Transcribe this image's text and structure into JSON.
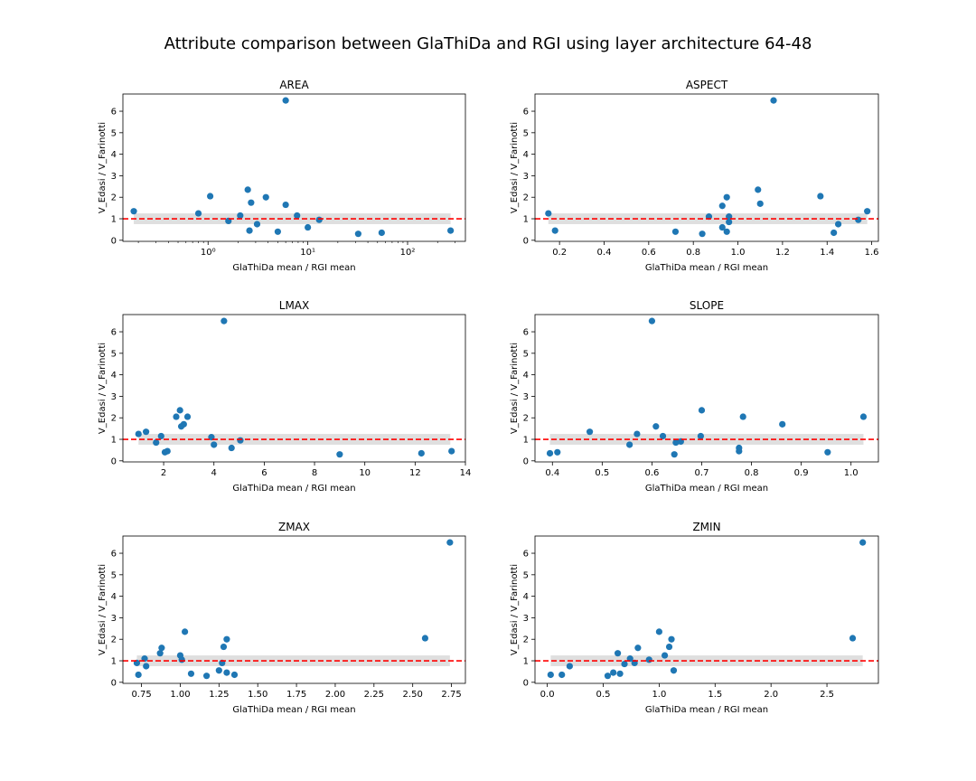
{
  "figure": {
    "title": "Attribute comparison between GlaThiDa and RGI using layer architecture 64-48"
  },
  "colors": {
    "points": "#1f77b4",
    "reference_line": "#ff0000",
    "band": "#d9d9d9"
  },
  "chart_data": [
    {
      "type": "scatter",
      "title": "AREA",
      "xlabel": "GlaThiDa mean / RGI mean",
      "ylabel": "V_Edasi / V_Farinotti",
      "xscale": "log",
      "xlim": [
        0.14,
        380
      ],
      "ylim": [
        -0.05,
        6.8
      ],
      "xticks": [
        1,
        10,
        100
      ],
      "xtick_labels": [
        "10⁰",
        "10¹",
        "10²"
      ],
      "yticks": [
        0,
        1,
        2,
        3,
        4,
        5,
        6
      ],
      "reference_y": 1.0,
      "band": {
        "x": [
          0.18,
          270
        ],
        "y": [
          0.75,
          1.25
        ]
      },
      "points": [
        {
          "x": 0.18,
          "y": 1.35
        },
        {
          "x": 0.8,
          "y": 1.25
        },
        {
          "x": 1.05,
          "y": 2.05
        },
        {
          "x": 1.6,
          "y": 0.9
        },
        {
          "x": 2.1,
          "y": 1.15
        },
        {
          "x": 2.5,
          "y": 2.35
        },
        {
          "x": 2.6,
          "y": 0.45
        },
        {
          "x": 2.7,
          "y": 1.75
        },
        {
          "x": 3.1,
          "y": 0.75
        },
        {
          "x": 3.8,
          "y": 2.0
        },
        {
          "x": 5.0,
          "y": 0.4
        },
        {
          "x": 6.0,
          "y": 6.5
        },
        {
          "x": 6.0,
          "y": 1.65
        },
        {
          "x": 7.8,
          "y": 1.15
        },
        {
          "x": 10.0,
          "y": 0.6
        },
        {
          "x": 13.0,
          "y": 0.95
        },
        {
          "x": 32.0,
          "y": 0.3
        },
        {
          "x": 55.0,
          "y": 0.35
        },
        {
          "x": 270.0,
          "y": 0.45
        }
      ]
    },
    {
      "type": "scatter",
      "title": "ASPECT",
      "xlabel": "GlaThiDa mean / RGI mean",
      "ylabel": "V_Edasi / V_Farinotti",
      "xscale": "linear",
      "xlim": [
        0.09,
        1.63
      ],
      "ylim": [
        -0.05,
        6.8
      ],
      "xticks": [
        0.2,
        0.4,
        0.6,
        0.8,
        1.0,
        1.2,
        1.4,
        1.6
      ],
      "xtick_labels": [
        "0.2",
        "0.4",
        "0.6",
        "0.8",
        "1.0",
        "1.2",
        "1.4",
        "1.6"
      ],
      "yticks": [
        0,
        1,
        2,
        3,
        4,
        5,
        6
      ],
      "reference_y": 1.0,
      "band": {
        "x": [
          0.15,
          1.58
        ],
        "y": [
          0.75,
          1.25
        ]
      },
      "points": [
        {
          "x": 0.15,
          "y": 1.25
        },
        {
          "x": 0.18,
          "y": 0.45
        },
        {
          "x": 0.72,
          "y": 0.4
        },
        {
          "x": 0.84,
          "y": 0.3
        },
        {
          "x": 0.87,
          "y": 1.1
        },
        {
          "x": 0.93,
          "y": 1.6
        },
        {
          "x": 0.93,
          "y": 0.6
        },
        {
          "x": 0.95,
          "y": 2.0
        },
        {
          "x": 0.96,
          "y": 1.1
        },
        {
          "x": 0.96,
          "y": 0.85
        },
        {
          "x": 0.95,
          "y": 0.4
        },
        {
          "x": 1.09,
          "y": 2.35
        },
        {
          "x": 1.1,
          "y": 1.7
        },
        {
          "x": 1.16,
          "y": 6.5
        },
        {
          "x": 1.37,
          "y": 2.05
        },
        {
          "x": 1.43,
          "y": 0.35
        },
        {
          "x": 1.45,
          "y": 0.75
        },
        {
          "x": 1.54,
          "y": 0.95
        },
        {
          "x": 1.58,
          "y": 1.35
        }
      ]
    },
    {
      "type": "scatter",
      "title": "LMAX",
      "xlabel": "GlaThiDa mean / RGI mean",
      "ylabel": "V_Edasi / V_Farinotti",
      "xscale": "linear",
      "xlim": [
        0.38,
        14.0
      ],
      "ylim": [
        -0.05,
        6.8
      ],
      "xticks": [
        2,
        4,
        6,
        8,
        10,
        12,
        14
      ],
      "xtick_labels": [
        "2",
        "4",
        "6",
        "8",
        "10",
        "12",
        "14"
      ],
      "yticks": [
        0,
        1,
        2,
        3,
        4,
        5,
        6
      ],
      "reference_y": 1.0,
      "band": {
        "x": [
          1.0,
          13.4
        ],
        "y": [
          0.75,
          1.25
        ]
      },
      "points": [
        {
          "x": 1.0,
          "y": 1.25
        },
        {
          "x": 1.3,
          "y": 1.35
        },
        {
          "x": 1.7,
          "y": 0.85
        },
        {
          "x": 1.9,
          "y": 1.15
        },
        {
          "x": 2.05,
          "y": 0.4
        },
        {
          "x": 2.15,
          "y": 0.45
        },
        {
          "x": 2.5,
          "y": 2.05
        },
        {
          "x": 2.65,
          "y": 2.35
        },
        {
          "x": 2.7,
          "y": 1.6
        },
        {
          "x": 2.8,
          "y": 1.7
        },
        {
          "x": 2.95,
          "y": 2.05
        },
        {
          "x": 3.9,
          "y": 1.1
        },
        {
          "x": 4.0,
          "y": 0.75
        },
        {
          "x": 4.4,
          "y": 6.5
        },
        {
          "x": 4.7,
          "y": 0.6
        },
        {
          "x": 5.05,
          "y": 0.95
        },
        {
          "x": 9.0,
          "y": 0.3
        },
        {
          "x": 12.25,
          "y": 0.35
        },
        {
          "x": 13.45,
          "y": 0.45
        }
      ]
    },
    {
      "type": "scatter",
      "title": "SLOPE",
      "xlabel": "GlaThiDa mean / RGI mean",
      "ylabel": "V_Edasi / V_Farinotti",
      "xscale": "linear",
      "xlim": [
        0.365,
        1.055
      ],
      "ylim": [
        -0.05,
        6.8
      ],
      "xticks": [
        0.4,
        0.5,
        0.6,
        0.7,
        0.8,
        0.9,
        1.0
      ],
      "xtick_labels": [
        "0.4",
        "0.5",
        "0.6",
        "0.7",
        "0.8",
        "0.9",
        "1.0"
      ],
      "yticks": [
        0,
        1,
        2,
        3,
        4,
        5,
        6
      ],
      "reference_y": 1.0,
      "band": {
        "x": [
          0.395,
          1.025
        ],
        "y": [
          0.75,
          1.25
        ]
      },
      "points": [
        {
          "x": 0.395,
          "y": 0.35
        },
        {
          "x": 0.41,
          "y": 0.4
        },
        {
          "x": 0.475,
          "y": 1.35
        },
        {
          "x": 0.555,
          "y": 0.75
        },
        {
          "x": 0.57,
          "y": 1.25
        },
        {
          "x": 0.6,
          "y": 6.5
        },
        {
          "x": 0.608,
          "y": 1.6
        },
        {
          "x": 0.622,
          "y": 1.15
        },
        {
          "x": 0.645,
          "y": 0.3
        },
        {
          "x": 0.648,
          "y": 0.85
        },
        {
          "x": 0.658,
          "y": 0.9
        },
        {
          "x": 0.698,
          "y": 1.15
        },
        {
          "x": 0.7,
          "y": 2.35
        },
        {
          "x": 0.775,
          "y": 0.6
        },
        {
          "x": 0.775,
          "y": 0.45
        },
        {
          "x": 0.783,
          "y": 2.05
        },
        {
          "x": 0.862,
          "y": 1.7
        },
        {
          "x": 0.953,
          "y": 0.4
        },
        {
          "x": 1.025,
          "y": 2.05
        }
      ]
    },
    {
      "type": "scatter",
      "title": "ZMAX",
      "xlabel": "GlaThiDa mean / RGI mean",
      "ylabel": "V_Edasi / V_Farinotti",
      "xscale": "linear",
      "xlim": [
        0.63,
        2.84
      ],
      "ylim": [
        -0.05,
        6.8
      ],
      "xticks": [
        0.75,
        1.0,
        1.25,
        1.5,
        1.75,
        2.0,
        2.25,
        2.5,
        2.75
      ],
      "xtick_labels": [
        "0.75",
        "1.00",
        "1.25",
        "1.50",
        "1.75",
        "2.00",
        "2.25",
        "2.50",
        "2.75"
      ],
      "yticks": [
        0,
        1,
        2,
        3,
        4,
        5,
        6
      ],
      "reference_y": 1.0,
      "band": {
        "x": [
          0.72,
          2.74
        ],
        "y": [
          0.75,
          1.25
        ]
      },
      "points": [
        {
          "x": 0.72,
          "y": 0.9
        },
        {
          "x": 0.73,
          "y": 0.35
        },
        {
          "x": 0.77,
          "y": 1.1
        },
        {
          "x": 0.78,
          "y": 0.75
        },
        {
          "x": 0.87,
          "y": 1.35
        },
        {
          "x": 0.88,
          "y": 1.6
        },
        {
          "x": 1.0,
          "y": 1.25
        },
        {
          "x": 1.01,
          "y": 1.05
        },
        {
          "x": 1.03,
          "y": 2.35
        },
        {
          "x": 1.07,
          "y": 0.4
        },
        {
          "x": 1.17,
          "y": 0.3
        },
        {
          "x": 1.25,
          "y": 0.55
        },
        {
          "x": 1.27,
          "y": 0.9
        },
        {
          "x": 1.28,
          "y": 1.65
        },
        {
          "x": 1.3,
          "y": 0.45
        },
        {
          "x": 1.3,
          "y": 2.0
        },
        {
          "x": 1.35,
          "y": 0.35
        },
        {
          "x": 2.58,
          "y": 2.05
        },
        {
          "x": 2.74,
          "y": 6.5
        }
      ]
    },
    {
      "type": "scatter",
      "title": "ZMIN",
      "xlabel": "GlaThiDa mean / RGI mean",
      "ylabel": "V_Edasi / V_Farinotti",
      "xscale": "linear",
      "xlim": [
        -0.11,
        2.96
      ],
      "ylim": [
        -0.05,
        6.8
      ],
      "xticks": [
        0.0,
        0.5,
        1.0,
        1.5,
        2.0,
        2.5
      ],
      "xtick_labels": [
        "0.0",
        "0.5",
        "1.0",
        "1.5",
        "2.0",
        "2.5"
      ],
      "yticks": [
        0,
        1,
        2,
        3,
        4,
        5,
        6
      ],
      "reference_y": 1.0,
      "band": {
        "x": [
          0.03,
          2.82
        ],
        "y": [
          0.75,
          1.25
        ]
      },
      "points": [
        {
          "x": 0.03,
          "y": 0.35
        },
        {
          "x": 0.13,
          "y": 0.35
        },
        {
          "x": 0.2,
          "y": 0.75
        },
        {
          "x": 0.54,
          "y": 0.3
        },
        {
          "x": 0.59,
          "y": 0.45
        },
        {
          "x": 0.63,
          "y": 1.35
        },
        {
          "x": 0.65,
          "y": 0.4
        },
        {
          "x": 0.69,
          "y": 0.85
        },
        {
          "x": 0.74,
          "y": 1.1
        },
        {
          "x": 0.78,
          "y": 0.9
        },
        {
          "x": 0.81,
          "y": 1.6
        },
        {
          "x": 0.91,
          "y": 1.05
        },
        {
          "x": 1.0,
          "y": 2.35
        },
        {
          "x": 1.05,
          "y": 1.25
        },
        {
          "x": 1.09,
          "y": 1.65
        },
        {
          "x": 1.11,
          "y": 2.0
        },
        {
          "x": 1.13,
          "y": 0.55
        },
        {
          "x": 2.73,
          "y": 2.05
        },
        {
          "x": 2.82,
          "y": 6.5
        }
      ]
    }
  ]
}
